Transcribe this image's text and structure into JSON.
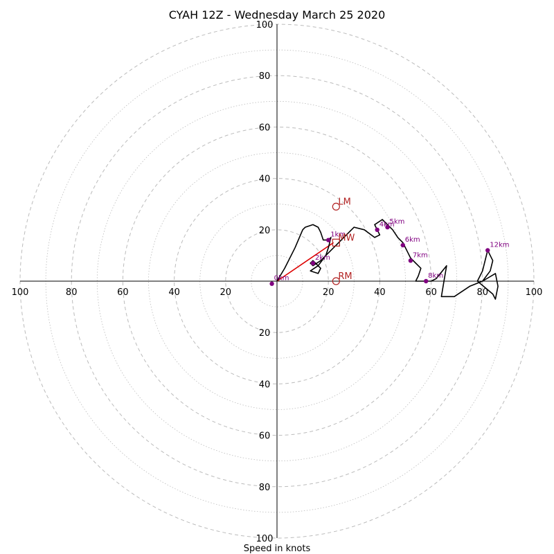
{
  "chart_data": {
    "type": "hodograph",
    "title": "CYAH 12Z - Wednesday March 25 2020",
    "xlabel": "Speed in knots",
    "range": [
      -100,
      100
    ],
    "ring_step_major": 20,
    "ring_step_minor": 10,
    "tick_labels": {
      "right": [
        "20",
        "40",
        "60",
        "80",
        "100"
      ],
      "left": [
        "20",
        "40",
        "60",
        "80",
        "100"
      ],
      "up": [
        "20",
        "40",
        "60",
        "80",
        "100"
      ],
      "down": [
        "20",
        "40",
        "60",
        "80",
        "100"
      ]
    },
    "trace": [
      [
        0,
        0
      ],
      [
        3,
        5
      ],
      [
        7,
        13
      ],
      [
        10,
        20
      ],
      [
        11,
        21
      ],
      [
        14,
        22
      ],
      [
        16,
        21
      ],
      [
        17,
        19
      ],
      [
        18,
        16
      ],
      [
        20,
        16
      ],
      [
        21,
        17
      ],
      [
        20,
        13
      ],
      [
        19,
        10
      ],
      [
        17,
        8
      ],
      [
        14,
        6
      ],
      [
        13,
        7
      ],
      [
        14,
        8
      ],
      [
        17,
        5
      ],
      [
        16,
        3
      ],
      [
        13,
        4
      ],
      [
        16,
        6
      ],
      [
        19,
        10
      ],
      [
        22,
        13
      ],
      [
        24,
        15
      ],
      [
        27,
        18
      ],
      [
        30,
        21
      ],
      [
        34,
        20
      ],
      [
        38,
        17
      ],
      [
        40,
        18
      ],
      [
        39,
        20
      ],
      [
        38,
        22
      ],
      [
        41,
        24
      ],
      [
        43,
        22
      ],
      [
        45,
        20
      ],
      [
        47,
        17
      ],
      [
        49,
        15
      ],
      [
        50,
        13
      ],
      [
        51,
        11
      ],
      [
        52,
        9
      ],
      [
        54,
        7
      ],
      [
        56,
        5
      ],
      [
        55,
        2
      ],
      [
        54,
        0
      ],
      [
        57,
        0
      ],
      [
        60,
        0
      ],
      [
        62,
        1
      ],
      [
        66,
        6
      ],
      [
        65,
        0
      ],
      [
        64,
        -6
      ],
      [
        69,
        -6
      ],
      [
        75,
        -2
      ],
      [
        80,
        0
      ],
      [
        83,
        4
      ],
      [
        84,
        8
      ],
      [
        82,
        12
      ],
      [
        80,
        4
      ],
      [
        78,
        0
      ],
      [
        84,
        -5
      ],
      [
        85,
        -7
      ],
      [
        86,
        -2
      ],
      [
        85,
        3
      ],
      [
        80,
        0
      ]
    ],
    "height_markers": [
      {
        "label": "0km",
        "u": -2,
        "v": -1
      },
      {
        "label": "1km",
        "u": 20,
        "v": 16
      },
      {
        "label": "2km",
        "u": 14,
        "v": 7
      },
      {
        "label": "4km",
        "u": 39,
        "v": 20
      },
      {
        "label": "5km",
        "u": 43,
        "v": 21
      },
      {
        "label": "6km",
        "u": 49,
        "v": 14
      },
      {
        "label": "7km",
        "u": 52,
        "v": 8
      },
      {
        "label": "8km",
        "u": 58,
        "v": 0
      },
      {
        "label": "12km",
        "u": 82,
        "v": 12
      }
    ],
    "storm_motion": [
      {
        "label": "LM",
        "u": 23,
        "v": 29,
        "marker": "circle"
      },
      {
        "label": "RM",
        "u": 23,
        "v": 0,
        "marker": "circle"
      },
      {
        "label": "MW",
        "u": 23,
        "v": 15,
        "marker": "square"
      }
    ],
    "shear_vector": {
      "from": [
        0,
        0
      ],
      "to": [
        22,
        15
      ]
    },
    "colors": {
      "trace": "#000000",
      "markers": "#800080",
      "storm": "#b22222",
      "shear": "#dd0000",
      "grid": "#bbbbbb"
    }
  }
}
